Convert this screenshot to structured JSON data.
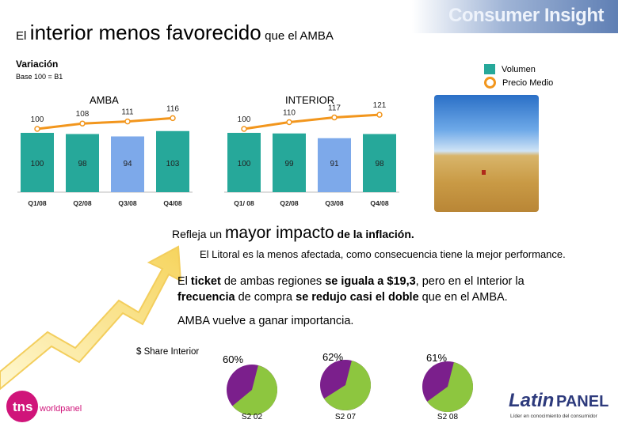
{
  "header": {
    "brand": "Consumer Insight",
    "title_prefix": "El",
    "title_main": "interior menos favorecido",
    "title_suffix": "que el AMBA"
  },
  "subheader": {
    "variacion": "Variación",
    "base": "Base 100 = B1"
  },
  "legend": {
    "volumen": "Volumen",
    "precio": "Precio Medio",
    "volumen_color": "#26a89a",
    "precio_color": "#f2961d"
  },
  "chart_data": [
    {
      "type": "bar",
      "title": "AMBA",
      "categories": [
        "Q1/08",
        "Q2/08",
        "Q3/08",
        "Q4/08"
      ],
      "series": [
        {
          "name": "Volumen",
          "values": [
            100,
            98,
            94,
            103
          ]
        },
        {
          "name": "Precio Medio",
          "values": [
            100,
            108,
            111,
            116
          ]
        }
      ],
      "highlight_index": 2
    },
    {
      "type": "bar",
      "title": "INTERIOR",
      "categories": [
        "Q1/ 08",
        "Q2/08",
        "Q3/08",
        "Q4/08"
      ],
      "series": [
        {
          "name": "Volumen",
          "values": [
            100,
            99,
            91,
            98
          ]
        },
        {
          "name": "Precio Medio",
          "values": [
            100,
            110,
            117,
            121
          ]
        }
      ],
      "highlight_index": 2
    },
    {
      "type": "pie",
      "title": "$ Share Interior",
      "pies": [
        {
          "label": "S2 02",
          "value": 60,
          "text": "60%"
        },
        {
          "label": "S2 07",
          "value": 62,
          "text": "62%"
        },
        {
          "label": "S2 08",
          "value": 61,
          "text": "61%"
        }
      ]
    }
  ],
  "colors": {
    "bar": "#26a89a",
    "bar_highlight": "#7da9ea",
    "price_line": "#f2961d",
    "pie_main": "#8dc63f",
    "pie_rest": "#7b1f8c"
  },
  "text": {
    "t1_a": "Refleja un",
    "t1_b": "mayor impacto",
    "t1_c": "de la inflación.",
    "t2": "El Litoral es la menos afectada, como consecuencia tiene la mejor performance.",
    "t3_1": "El ",
    "t3_2": "ticket",
    "t3_3": " de ambas regiones ",
    "t3_4": "se iguala a $19,3",
    "t3_5": ", pero en el Interior la ",
    "t3_6": "frecuencia",
    "t3_7": " de compra ",
    "t3_8": "se redujo casi el doble",
    "t3_9": " que en el AMBA.",
    "t4": "AMBA vuelve a ganar importancia."
  },
  "footer": {
    "tns": "tns",
    "worldpanel": "worldpanel",
    "latin": "Latin",
    "panel": "PANEL",
    "tagline": "Líder en conocimiento del consumidor"
  }
}
